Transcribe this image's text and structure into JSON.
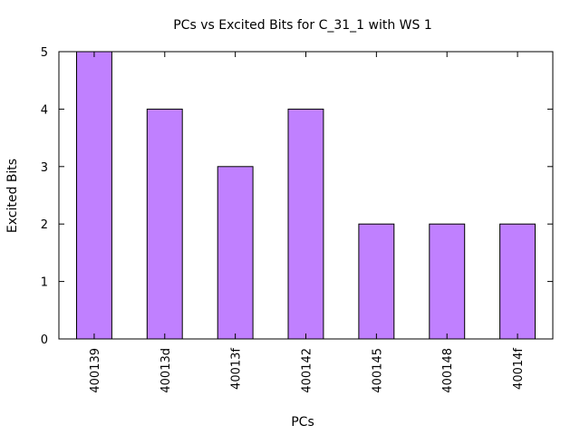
{
  "chart_data": {
    "type": "bar",
    "title": "PCs vs Excited Bits for C_31_1 with WS 1",
    "xlabel": "PCs",
    "ylabel": "Excited Bits",
    "categories": [
      "400139",
      "40013d",
      "40013f",
      "400142",
      "400145",
      "400148",
      "40014f"
    ],
    "values": [
      5,
      4,
      3,
      4,
      2,
      2,
      2
    ],
    "ylim": [
      0,
      5
    ],
    "yticks": [
      0,
      1,
      2,
      3,
      4,
      5
    ],
    "grid": false,
    "legend": "none",
    "bar_color": "#c080ff"
  }
}
